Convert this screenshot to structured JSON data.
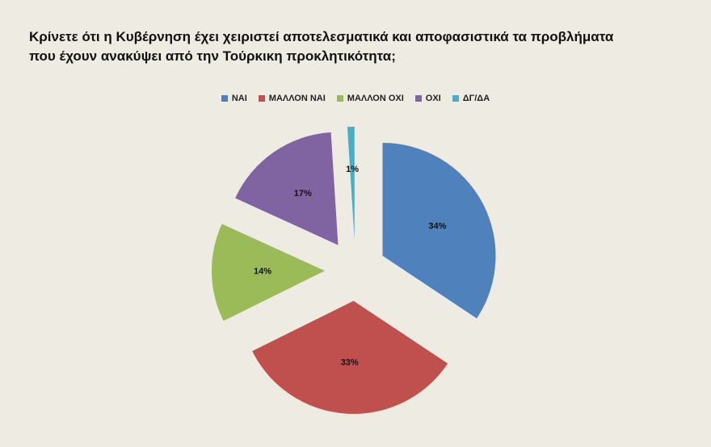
{
  "title": {
    "line1": "Κρίνετε  ότι η Κυβέρνηση έχει χειριστεί αποτελεσματικά και αποφασιστικά τα προβλήματα",
    "line2": "που έχουν ανακύψει από την Τούρκικη προκλητικότητα;"
  },
  "chart_data": {
    "type": "pie",
    "title": "Κρίνετε  ότι η Κυβέρνηση έχει χειριστεί αποτελεσματικά και αποφασιστικά τα προβλήματα που έχουν ανακύψει από την Τούρκικη προκλητικότητα;",
    "legend_position": "top",
    "exploded": true,
    "slices": [
      {
        "label": "ΝΑΙ",
        "value": 34,
        "data_label": "34%",
        "color": "#4f81bd"
      },
      {
        "label": "ΜΑΛΛΟΝ ΝΑΙ",
        "value": 33,
        "data_label": "33%",
        "color": "#c0504d"
      },
      {
        "label": "ΜΑΛΛΟΝ ΟΧΙ",
        "value": 14,
        "data_label": "14%",
        "color": "#9bbb59"
      },
      {
        "label": "ΟΧΙ",
        "value": 17,
        "data_label": "17%",
        "color": "#8064a2"
      },
      {
        "label": "ΔΓ/ΔΑ",
        "value": 1,
        "data_label": "1%",
        "color": "#4bacc6"
      }
    ]
  }
}
